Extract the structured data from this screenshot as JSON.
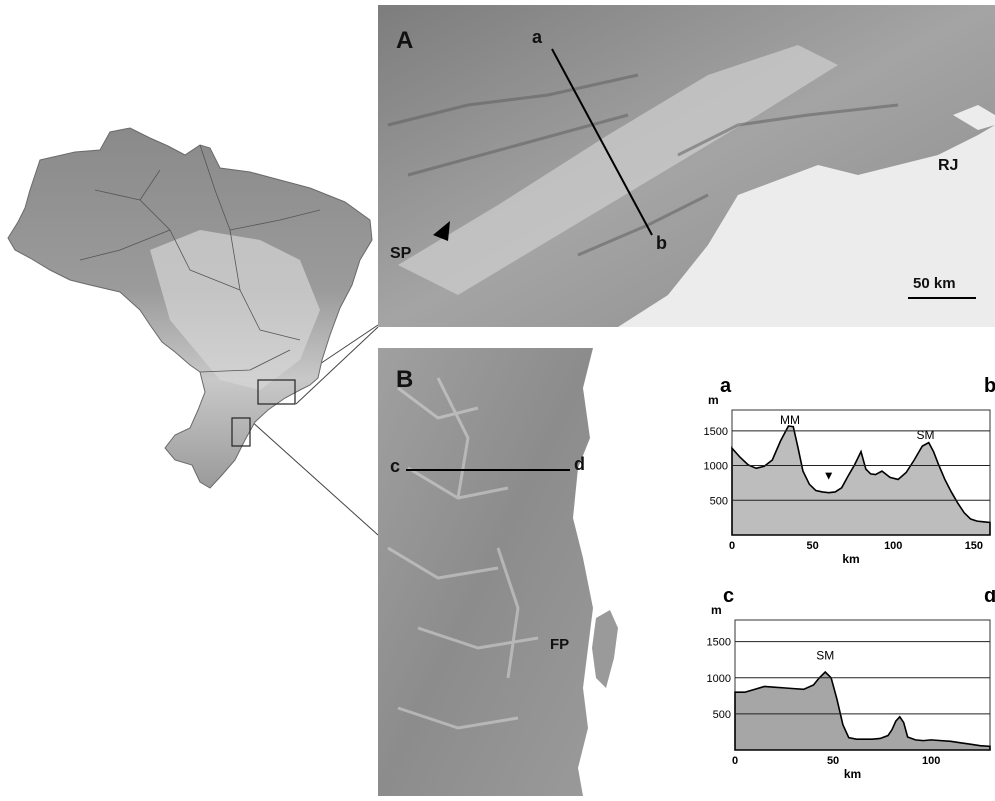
{
  "panelA": {
    "letter": "A",
    "transect_start": "a",
    "transect_end": "b",
    "city_left": "SP",
    "city_right": "RJ",
    "scale_label": "50 km"
  },
  "panelB": {
    "letter": "B",
    "transect_start": "c",
    "transect_end": "d",
    "city": "FP"
  },
  "chart_data": [
    {
      "type": "area",
      "title_left": "a",
      "title_right": "b",
      "ylabel": "m",
      "xlabel": "km",
      "xlim": [
        0,
        160
      ],
      "ylim": [
        0,
        1800
      ],
      "xticks": [
        "0",
        "50",
        "100",
        "150"
      ],
      "yticks": [
        "500",
        "1000",
        "1500"
      ],
      "annotations": [
        {
          "text": "MM",
          "x": 36,
          "y": 1600
        },
        {
          "text": "SM",
          "x": 120,
          "y": 1380
        },
        {
          "text": "▼",
          "x": 60,
          "y": 800
        }
      ],
      "x": [
        0,
        5,
        10,
        15,
        20,
        25,
        30,
        35,
        38,
        41,
        44,
        48,
        52,
        56,
        60,
        64,
        68,
        72,
        76,
        80,
        83,
        86,
        89,
        93,
        98,
        103,
        108,
        113,
        118,
        122,
        125,
        128,
        132,
        136,
        140,
        144,
        148,
        152,
        156,
        160
      ],
      "y": [
        1250,
        1120,
        1010,
        960,
        990,
        1080,
        1350,
        1570,
        1560,
        1250,
        920,
        730,
        640,
        620,
        610,
        620,
        680,
        850,
        1010,
        1200,
        950,
        880,
        870,
        920,
        830,
        800,
        900,
        1080,
        1280,
        1330,
        1200,
        1020,
        800,
        620,
        460,
        320,
        230,
        200,
        190,
        180
      ]
    },
    {
      "type": "area",
      "title_left": "c",
      "title_right": "d",
      "ylabel": "m",
      "xlabel": "km",
      "xlim": [
        0,
        130
      ],
      "ylim": [
        0,
        1800
      ],
      "xticks": [
        "0",
        "50",
        "100"
      ],
      "yticks": [
        "500",
        "1000",
        "1500"
      ],
      "annotations": [
        {
          "text": "SM",
          "x": 46,
          "y": 1250
        }
      ],
      "x": [
        0,
        5,
        10,
        15,
        20,
        25,
        30,
        35,
        40,
        43,
        46,
        49,
        52,
        55,
        58,
        62,
        66,
        70,
        74,
        78,
        80,
        82,
        84,
        86,
        88,
        92,
        96,
        100,
        105,
        110,
        115,
        120,
        125,
        130
      ],
      "y": [
        800,
        800,
        840,
        880,
        870,
        860,
        850,
        840,
        900,
        1000,
        1080,
        1000,
        700,
        350,
        170,
        150,
        150,
        150,
        160,
        200,
        280,
        400,
        460,
        380,
        180,
        140,
        130,
        140,
        130,
        120,
        100,
        80,
        60,
        50
      ]
    }
  ]
}
